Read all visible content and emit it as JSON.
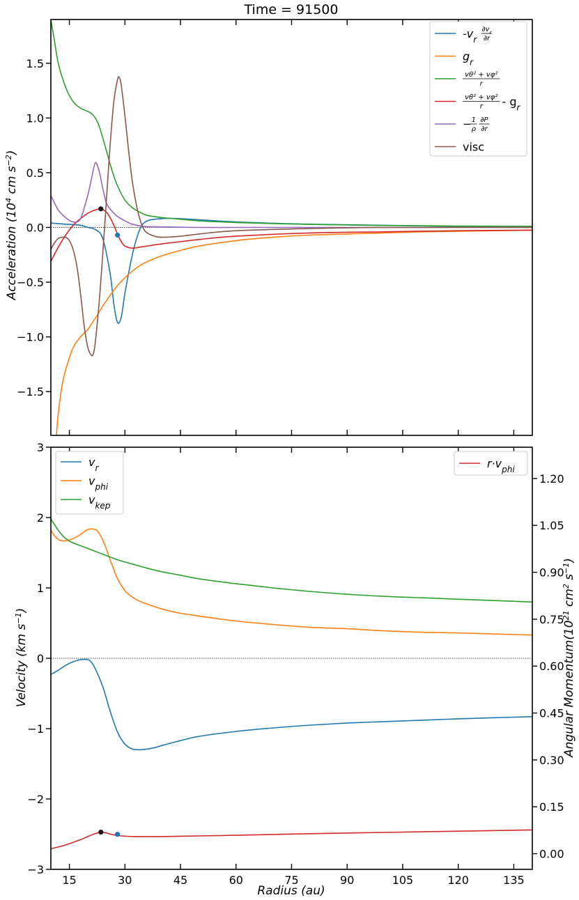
{
  "title": "Time = 91500",
  "colors": {
    "blue": "#1f77b4",
    "orange": "#ff7f0e",
    "green": "#2ca02c",
    "red": "#d62728",
    "purple": "#9467bd",
    "brown": "#8c564b",
    "marker_black": "#1a1a1a",
    "marker_blue": "#1f77b4"
  },
  "chart_data": [
    {
      "type": "line",
      "title": "Time = 91500",
      "xlabel": "",
      "ylabel": "Acceleration (10^4 cm s^-2)",
      "xlim": [
        10,
        140
      ],
      "ylim": [
        -1.9,
        1.9
      ],
      "yticks": [
        1.5,
        1.0,
        0.5,
        0.0,
        -0.5,
        -1.0,
        -1.5
      ],
      "ytick_labels": [
        "1.5",
        "1.0",
        "0.5",
        "0.0",
        "−0.5",
        "−1.0",
        "−1.5"
      ],
      "xticks": [
        15,
        30,
        45,
        60,
        75,
        90,
        105,
        120,
        135
      ],
      "xtick_labels_visible": false,
      "zero_line": true,
      "grid": false,
      "legend_position": "top-right",
      "series": [
        {
          "name": "-v_r ∂v_r/∂r",
          "color_key": "blue",
          "x": [
            10,
            14,
            18,
            20,
            22,
            24,
            26,
            27,
            28,
            29,
            30,
            32,
            34,
            36,
            40,
            45,
            60,
            80,
            100,
            120,
            140
          ],
          "y": [
            0.04,
            0.03,
            0.02,
            0.0,
            -0.02,
            -0.1,
            -0.42,
            -0.7,
            -0.87,
            -0.82,
            -0.6,
            -0.25,
            -0.02,
            0.06,
            0.08,
            0.08,
            0.05,
            0.03,
            0.02,
            0.01,
            0.01
          ]
        },
        {
          "name": "g_r",
          "color_key": "orange",
          "x": [
            11.5,
            12,
            13,
            14,
            16,
            18,
            20,
            22,
            24,
            26,
            28,
            30,
            32,
            35,
            40,
            45,
            50,
            60,
            70,
            80,
            90,
            100,
            110,
            120,
            130,
            140
          ],
          "y": [
            -1.9,
            -1.7,
            -1.45,
            -1.3,
            -1.1,
            -1.0,
            -0.93,
            -0.83,
            -0.72,
            -0.62,
            -0.53,
            -0.46,
            -0.4,
            -0.33,
            -0.26,
            -0.21,
            -0.17,
            -0.12,
            -0.09,
            -0.07,
            -0.06,
            -0.05,
            -0.04,
            -0.035,
            -0.03,
            -0.025
          ]
        },
        {
          "name": "(v_θ² + v_φ²)/r",
          "color_key": "green",
          "x": [
            10,
            11,
            12,
            14,
            16,
            18,
            20,
            21,
            22,
            23,
            24,
            25,
            26,
            27,
            28,
            30,
            32,
            34,
            36,
            40,
            45,
            50,
            60,
            70,
            80,
            90,
            100,
            120,
            140
          ],
          "y": [
            1.9,
            1.7,
            1.5,
            1.28,
            1.15,
            1.09,
            1.06,
            1.04,
            1.0,
            0.93,
            0.82,
            0.7,
            0.58,
            0.47,
            0.38,
            0.25,
            0.18,
            0.14,
            0.11,
            0.09,
            0.075,
            0.06,
            0.045,
            0.035,
            0.028,
            0.022,
            0.018,
            0.013,
            0.01
          ]
        },
        {
          "name": "(v_θ² + v_φ²)/r - g_r",
          "color_key": "red",
          "x": [
            10,
            12,
            14,
            16,
            18,
            20,
            22,
            23.5,
            25,
            26,
            27,
            28,
            29,
            30,
            32,
            34,
            36,
            40,
            45,
            50,
            60,
            80,
            100,
            120,
            140
          ],
          "y": [
            -0.31,
            -0.18,
            -0.07,
            0.02,
            0.08,
            0.13,
            0.16,
            0.17,
            0.14,
            0.09,
            0.02,
            -0.06,
            -0.13,
            -0.17,
            -0.19,
            -0.18,
            -0.17,
            -0.15,
            -0.13,
            -0.11,
            -0.08,
            -0.05,
            -0.04,
            -0.03,
            -0.025
          ]
        },
        {
          "name": "−(1/ρ) ∂P/∂r",
          "color_key": "purple",
          "x": [
            10,
            12,
            14,
            16,
            18,
            20,
            21,
            22,
            23,
            24,
            25,
            26,
            27,
            28,
            30,
            32,
            35,
            40,
            50,
            60,
            80,
            100,
            140
          ],
          "y": [
            0.29,
            0.16,
            0.09,
            0.05,
            0.08,
            0.3,
            0.45,
            0.59,
            0.52,
            0.36,
            0.22,
            0.17,
            0.13,
            0.1,
            0.06,
            0.03,
            0.01,
            0.005,
            0.0,
            0.0,
            0.0,
            0.0,
            0.0
          ]
        },
        {
          "name": "visc",
          "color_key": "brown",
          "x": [
            10,
            11,
            12,
            13,
            14,
            15,
            16,
            17,
            18,
            19,
            20,
            21,
            21.5,
            22,
            23,
            24,
            25,
            26,
            27,
            28,
            28.5,
            29,
            30,
            31,
            32,
            33,
            34,
            35,
            36,
            38,
            40,
            45,
            50,
            60,
            80,
            100,
            140
          ],
          "y": [
            -0.2,
            -0.14,
            -0.1,
            -0.09,
            -0.09,
            -0.12,
            -0.2,
            -0.35,
            -0.6,
            -0.9,
            -1.1,
            -1.17,
            -1.15,
            -1.05,
            -0.7,
            -0.25,
            0.25,
            0.75,
            1.15,
            1.35,
            1.37,
            1.3,
            1.02,
            0.7,
            0.42,
            0.22,
            0.08,
            -0.01,
            -0.05,
            -0.08,
            -0.09,
            -0.08,
            -0.06,
            -0.03,
            -0.01,
            0.0,
            0.0
          ]
        }
      ],
      "markers": [
        {
          "x": 23.5,
          "y": 0.17,
          "color_key": "marker_black"
        },
        {
          "x": 28.0,
          "y": -0.07,
          "color_key": "marker_blue"
        }
      ]
    },
    {
      "type": "line",
      "xlabel": "Radius (au)",
      "ylabel": "Velocity (km s^-1)",
      "y2label": "Angular Momentum (10^21 cm^2 s^-1)",
      "xlim": [
        10,
        140
      ],
      "ylim": [
        -3,
        3
      ],
      "y2lim": [
        -0.05,
        1.3
      ],
      "yticks": [
        3,
        2,
        1,
        0,
        -1,
        -2,
        -3
      ],
      "ytick_labels": [
        "3",
        "2",
        "1",
        "0",
        "−1",
        "−2",
        "−3"
      ],
      "y2ticks": [
        1.2,
        1.05,
        0.9,
        0.75,
        0.6,
        0.45,
        0.3,
        0.15,
        0.0
      ],
      "y2tick_labels": [
        "1.20",
        "1.05",
        "0.90",
        "0.75",
        "0.60",
        "0.45",
        "0.30",
        "0.15",
        "0.00"
      ],
      "xticks": [
        15,
        30,
        45,
        60,
        75,
        90,
        105,
        120,
        135
      ],
      "xtick_labels": [
        "15",
        "30",
        "45",
        "60",
        "75",
        "90",
        "105",
        "120",
        "135"
      ],
      "zero_line": true,
      "grid": false,
      "legend_positions": [
        "top-left",
        "top-right"
      ],
      "series": [
        {
          "name": "v_r",
          "color_key": "blue",
          "axis": "left",
          "x": [
            10,
            12,
            14,
            16,
            18,
            20,
            21,
            22,
            24,
            26,
            28,
            30,
            32,
            34,
            36,
            38,
            40,
            45,
            50,
            60,
            70,
            80,
            90,
            100,
            110,
            120,
            130,
            140
          ],
          "y": [
            -0.23,
            -0.17,
            -0.1,
            -0.05,
            -0.02,
            -0.02,
            -0.06,
            -0.15,
            -0.4,
            -0.75,
            -1.05,
            -1.22,
            -1.29,
            -1.3,
            -1.29,
            -1.27,
            -1.24,
            -1.17,
            -1.11,
            -1.04,
            -0.99,
            -0.95,
            -0.92,
            -0.9,
            -0.88,
            -0.86,
            -0.845,
            -0.83
          ]
        },
        {
          "name": "v_phi",
          "color_key": "orange",
          "axis": "left",
          "x": [
            10,
            11,
            12,
            13,
            14,
            16,
            18,
            20,
            22,
            23,
            24,
            25,
            26,
            27,
            28,
            30,
            32,
            34,
            36,
            40,
            45,
            50,
            60,
            70,
            80,
            90,
            100,
            110,
            120,
            130,
            140
          ],
          "y": [
            1.82,
            1.74,
            1.69,
            1.67,
            1.67,
            1.7,
            1.76,
            1.83,
            1.83,
            1.78,
            1.68,
            1.55,
            1.4,
            1.26,
            1.13,
            0.96,
            0.87,
            0.81,
            0.77,
            0.7,
            0.64,
            0.6,
            0.53,
            0.48,
            0.44,
            0.42,
            0.39,
            0.37,
            0.36,
            0.345,
            0.33
          ]
        },
        {
          "name": "v_kep",
          "color_key": "green",
          "axis": "left",
          "x": [
            10,
            12,
            14,
            16,
            18,
            20,
            24,
            28,
            32,
            36,
            40,
            45,
            50,
            60,
            70,
            80,
            90,
            100,
            110,
            120,
            130,
            140
          ],
          "y": [
            1.98,
            1.82,
            1.7,
            1.64,
            1.6,
            1.56,
            1.48,
            1.4,
            1.34,
            1.28,
            1.23,
            1.18,
            1.13,
            1.06,
            1.0,
            0.95,
            0.91,
            0.88,
            0.86,
            0.84,
            0.82,
            0.8
          ]
        },
        {
          "name": "r·v_phi",
          "color_key": "red",
          "axis": "right",
          "x": [
            10,
            14,
            18,
            21,
            23.5,
            25,
            27,
            29,
            32,
            36,
            40,
            50,
            60,
            80,
            100,
            120,
            140
          ],
          "y": [
            0.016,
            0.028,
            0.045,
            0.06,
            0.069,
            0.066,
            0.06,
            0.057,
            0.055,
            0.055,
            0.055,
            0.057,
            0.059,
            0.064,
            0.068,
            0.072,
            0.076
          ]
        }
      ],
      "markers": [
        {
          "x": 23.5,
          "y": 0.069,
          "axis": "right",
          "color_key": "marker_black"
        },
        {
          "x": 28.0,
          "y": 0.062,
          "axis": "right",
          "color_key": "marker_blue"
        }
      ]
    }
  ],
  "legend_top": [
    {
      "color_key": "blue",
      "label": "-v",
      "sub": "r",
      "frac_num": "∂v",
      "frac_num_sub": "r",
      "frac_den": "∂r"
    },
    {
      "color_key": "orange",
      "label": "g",
      "sub": "r"
    },
    {
      "color_key": "green",
      "frac_num": "vθ² + vφ²",
      "frac_den": "r"
    },
    {
      "color_key": "red",
      "frac_num": "vθ² + vφ²",
      "frac_den": "r",
      "suffix": " - g",
      "suffix_sub": "r"
    },
    {
      "color_key": "purple",
      "prefix": "−",
      "frac_num": "1",
      "frac_den": "ρ",
      "frac2_num": "∂P",
      "frac2_den": "∂r"
    },
    {
      "color_key": "brown",
      "label": "visc"
    }
  ],
  "legend_bottom_left": [
    {
      "color_key": "blue",
      "label": "v",
      "sub": "r"
    },
    {
      "color_key": "orange",
      "label": "v",
      "sub": "phi"
    },
    {
      "color_key": "green",
      "label": "v",
      "sub": "kep"
    }
  ],
  "legend_bottom_right": [
    {
      "color_key": "red",
      "label": "r·v",
      "sub": "phi"
    }
  ],
  "axis_labels": {
    "top_y": "Acceleration (10^4 cm s^-2)",
    "bottom_y": "Velocity (km s^-1)",
    "bottom_y2": "Angular Momentum(10^21 cm^2 s^-1)",
    "bottom_x": "Radius (au)"
  }
}
